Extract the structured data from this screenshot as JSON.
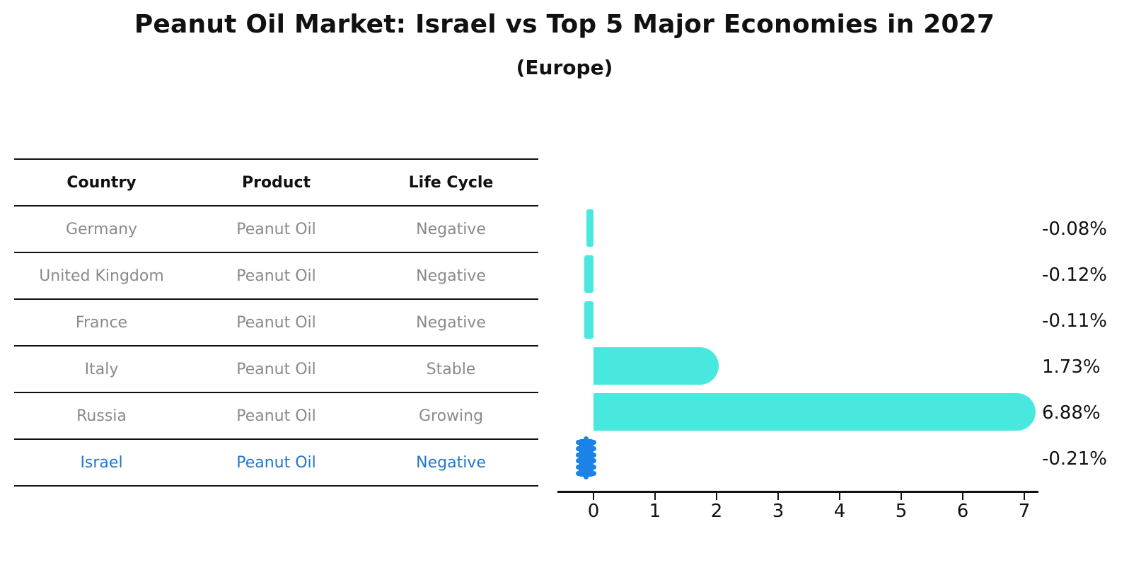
{
  "title": "Peanut Oil Market: Israel vs Top 5 Major Economies in 2027",
  "subtitle": "(Europe)",
  "table": {
    "headers": [
      "Country",
      "Product",
      "Life Cycle"
    ],
    "rows": [
      {
        "country": "Germany",
        "product": "Peanut Oil",
        "life_cycle": "Negative",
        "highlight": false
      },
      {
        "country": "United Kingdom",
        "product": "Peanut Oil",
        "life_cycle": "Negative",
        "highlight": false
      },
      {
        "country": "France",
        "product": "Peanut Oil",
        "life_cycle": "Negative",
        "highlight": false
      },
      {
        "country": "Italy",
        "product": "Peanut Oil",
        "life_cycle": "Stable",
        "highlight": false
      },
      {
        "country": "Russia",
        "product": "Peanut Oil",
        "life_cycle": "Growing",
        "highlight": false
      },
      {
        "country": "Israel",
        "product": "Peanut Oil",
        "life_cycle": "Negative",
        "highlight": true
      }
    ]
  },
  "chart_data": {
    "type": "bar",
    "orientation": "horizontal",
    "title": "Peanut Oil Market: Israel vs Top 5 Major Economies in 2027 (Europe)",
    "categories": [
      "Germany",
      "United Kingdom",
      "France",
      "Italy",
      "Russia",
      "Israel"
    ],
    "values": [
      -0.08,
      -0.12,
      -0.11,
      1.73,
      6.88,
      -0.21
    ],
    "labels": [
      "-0.08%",
      "-0.12%",
      "-0.11%",
      "1.73%",
      "6.88%",
      "-0.21%"
    ],
    "value_unit": "percent",
    "x_ticks": [
      0,
      1,
      2,
      3,
      4,
      5,
      6,
      7
    ],
    "xlim": [
      -0.59,
      7.23
    ],
    "grid": false,
    "legend": "none",
    "highlight_index": 5,
    "highlight_style": "dotted-edge",
    "colors": {
      "default": "#49E8DF",
      "highlight": "#1B82E8",
      "highlight_text": "#2377CD",
      "axis": "#111111",
      "muted_text": "#8a8a8a"
    }
  }
}
